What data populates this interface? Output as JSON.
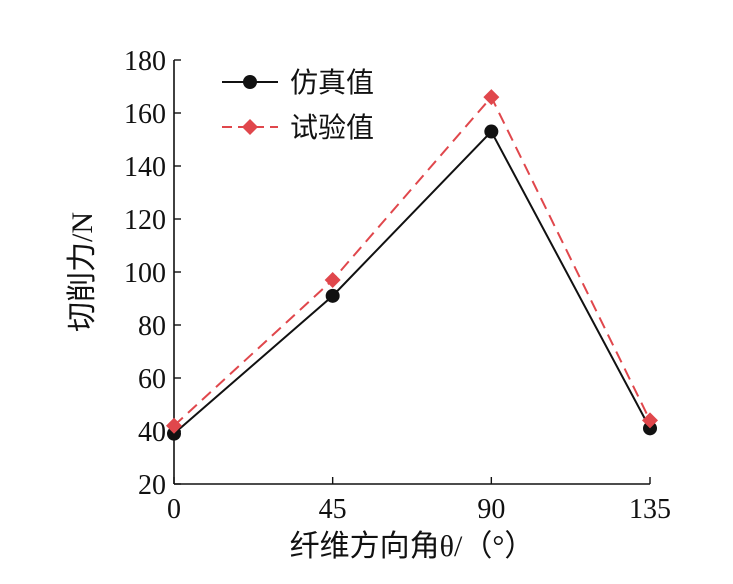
{
  "chart_data": {
    "type": "line",
    "xlabel": "纤维方向角θ/（°）",
    "ylabel": "切削力/N",
    "x": [
      0,
      45,
      90,
      135
    ],
    "x_ticks": [
      "0",
      "45",
      "90",
      "135"
    ],
    "xlim": [
      0,
      135
    ],
    "ylim": [
      20,
      180
    ],
    "y_ticks": [
      "20",
      "40",
      "60",
      "80",
      "100",
      "120",
      "140",
      "160",
      "180"
    ],
    "grid": false,
    "legend_position": "top-left",
    "series": [
      {
        "name": "仿真值",
        "values": [
          39,
          91,
          153,
          41
        ],
        "color": "#111111",
        "marker": "circle",
        "line": "solid"
      },
      {
        "name": "试验值",
        "values": [
          42,
          97,
          166,
          44
        ],
        "color": "#e0474c",
        "marker": "diamond",
        "line": "dashed"
      }
    ]
  }
}
